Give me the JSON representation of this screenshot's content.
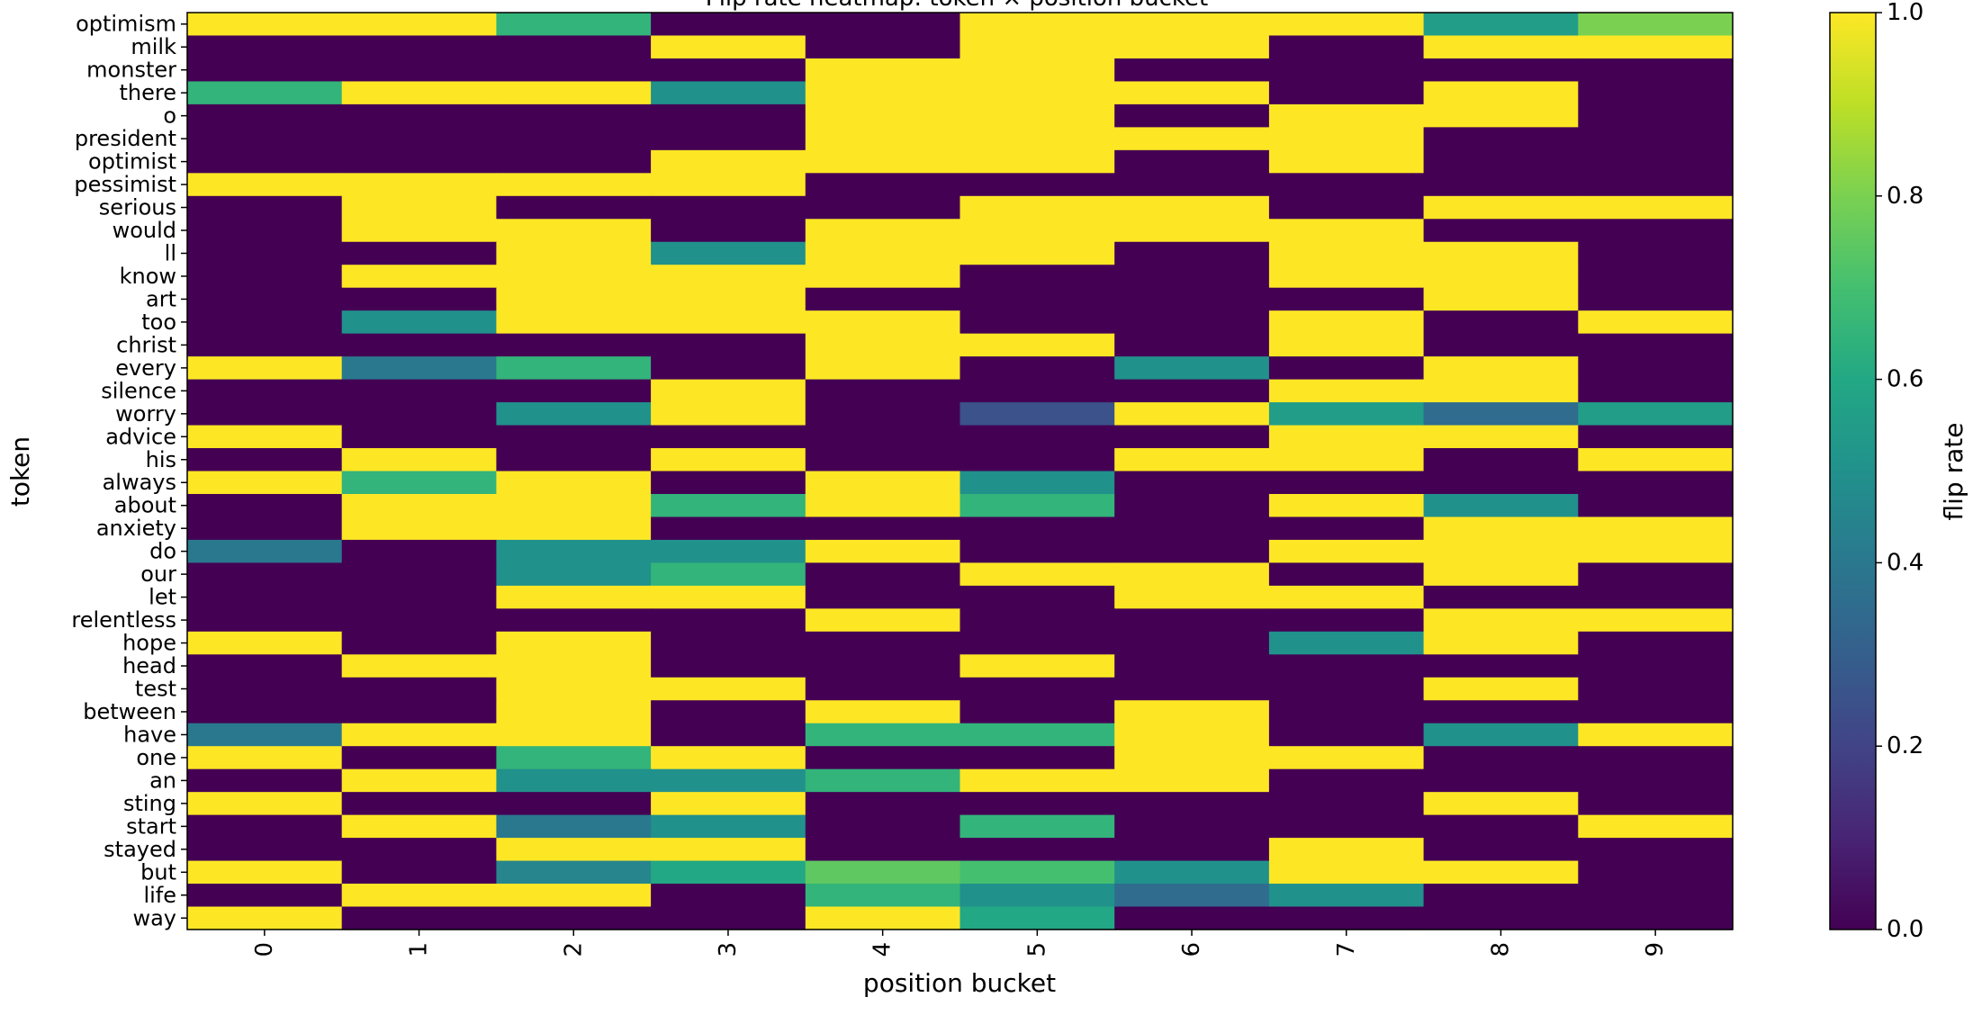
{
  "chart_data": {
    "type": "heatmap",
    "title": "Flip rate heatmap: token × position bucket",
    "xlabel": "position bucket",
    "ylabel": "token",
    "colorbar_label": "flip rate",
    "colormap": "viridis",
    "vmin": 0.0,
    "vmax": 1.0,
    "colorbar_ticks": [
      "0.0",
      "0.2",
      "0.4",
      "0.6",
      "0.8",
      "1.0"
    ],
    "x_categories": [
      "0",
      "1",
      "2",
      "3",
      "4",
      "5",
      "6",
      "7",
      "8",
      "9"
    ],
    "y_categories": [
      "optimism",
      "milk",
      "monster",
      "there",
      "o",
      "president",
      "optimist",
      "pessimist",
      "serious",
      "would",
      "ll",
      "know",
      "art",
      "too",
      "christ",
      "every",
      "silence",
      "worry",
      "advice",
      "his",
      "always",
      "about",
      "anxiety",
      "do",
      "our",
      "let",
      "relentless",
      "hope",
      "head",
      "test",
      "between",
      "have",
      "one",
      "an",
      "sting",
      "start",
      "stayed",
      "but",
      "life",
      "way"
    ],
    "values": [
      [
        1,
        1,
        0.65,
        0,
        0,
        1,
        1,
        1,
        0.55,
        0.8
      ],
      [
        0,
        0,
        0,
        1,
        0,
        1,
        1,
        0,
        1,
        1
      ],
      [
        0,
        0,
        0,
        0,
        1,
        1,
        0,
        0,
        0,
        0
      ],
      [
        0.65,
        1,
        1,
        0.5,
        1,
        1,
        1,
        0,
        1,
        0
      ],
      [
        0,
        0,
        0,
        0,
        1,
        1,
        0,
        1,
        1,
        0
      ],
      [
        0,
        0,
        0,
        0,
        1,
        1,
        1,
        1,
        0,
        0
      ],
      [
        0,
        0,
        0,
        1,
        1,
        1,
        0,
        1,
        0,
        0
      ],
      [
        1,
        1,
        1,
        1,
        0,
        0,
        0,
        0,
        0,
        0
      ],
      [
        0,
        1,
        0,
        0,
        0,
        1,
        1,
        0,
        1,
        1
      ],
      [
        0,
        1,
        1,
        0,
        1,
        1,
        1,
        1,
        0,
        0
      ],
      [
        0,
        0,
        1,
        0.5,
        1,
        1,
        0,
        1,
        1,
        0
      ],
      [
        0,
        1,
        1,
        1,
        1,
        0,
        0,
        1,
        1,
        0
      ],
      [
        0,
        0,
        1,
        1,
        0,
        0,
        0,
        0,
        1,
        0
      ],
      [
        0,
        0.5,
        1,
        1,
        1,
        0,
        0,
        1,
        0,
        1
      ],
      [
        0,
        0,
        0,
        0,
        1,
        1,
        0,
        1,
        0,
        0
      ],
      [
        1,
        0.4,
        0.65,
        0,
        1,
        0,
        0.5,
        0,
        1,
        0
      ],
      [
        0,
        0,
        0,
        1,
        0,
        0,
        0,
        1,
        1,
        0
      ],
      [
        0,
        0,
        0.5,
        1,
        0,
        0.25,
        1,
        0.55,
        0.35,
        0.55
      ],
      [
        1,
        0,
        0,
        0,
        0,
        0,
        0,
        1,
        1,
        0
      ],
      [
        0,
        1,
        0,
        1,
        0,
        0,
        1,
        1,
        0,
        1
      ],
      [
        1,
        0.65,
        1,
        0,
        1,
        0.5,
        0,
        0,
        0,
        0
      ],
      [
        0,
        1,
        1,
        0.65,
        1,
        0.65,
        0,
        1,
        0.5,
        0
      ],
      [
        0,
        1,
        1,
        0,
        0,
        0,
        0,
        0,
        1,
        1
      ],
      [
        0.4,
        0,
        0.5,
        0.5,
        1,
        0,
        0,
        1,
        1,
        1
      ],
      [
        0,
        0,
        0.5,
        0.65,
        0,
        1,
        1,
        0,
        1,
        0
      ],
      [
        0,
        0,
        1,
        1,
        0,
        0,
        1,
        1,
        0,
        0
      ],
      [
        0,
        0,
        0,
        0,
        1,
        0,
        0,
        0,
        1,
        1
      ],
      [
        1,
        0,
        1,
        0,
        0,
        0,
        0,
        0.5,
        1,
        0
      ],
      [
        0,
        1,
        1,
        0,
        0,
        1,
        0,
        0,
        0,
        0
      ],
      [
        0,
        0,
        1,
        1,
        0,
        0,
        0,
        0,
        1,
        0
      ],
      [
        0,
        0,
        1,
        0,
        1,
        0,
        1,
        0,
        0,
        0
      ],
      [
        0.4,
        1,
        1,
        0,
        0.65,
        0.65,
        1,
        0,
        0.5,
        1
      ],
      [
        1,
        0,
        0.65,
        1,
        0,
        0,
        1,
        1,
        0,
        0
      ],
      [
        0,
        1,
        0.5,
        0.5,
        0.65,
        1,
        1,
        0,
        0,
        0
      ],
      [
        1,
        0,
        0,
        1,
        0,
        0,
        0,
        0,
        1,
        0
      ],
      [
        0,
        1,
        0.4,
        0.5,
        0,
        0.65,
        0,
        0,
        0,
        1
      ],
      [
        0,
        0,
        1,
        1,
        0,
        0,
        0,
        1,
        0,
        0
      ],
      [
        1,
        0,
        0.45,
        0.6,
        0.75,
        0.7,
        0.5,
        1,
        1,
        0
      ],
      [
        0,
        1,
        1,
        0,
        0.65,
        0.5,
        0.35,
        0.5,
        0,
        0
      ],
      [
        1,
        0,
        0,
        0,
        1,
        0.6,
        0,
        0,
        0,
        0
      ]
    ]
  }
}
